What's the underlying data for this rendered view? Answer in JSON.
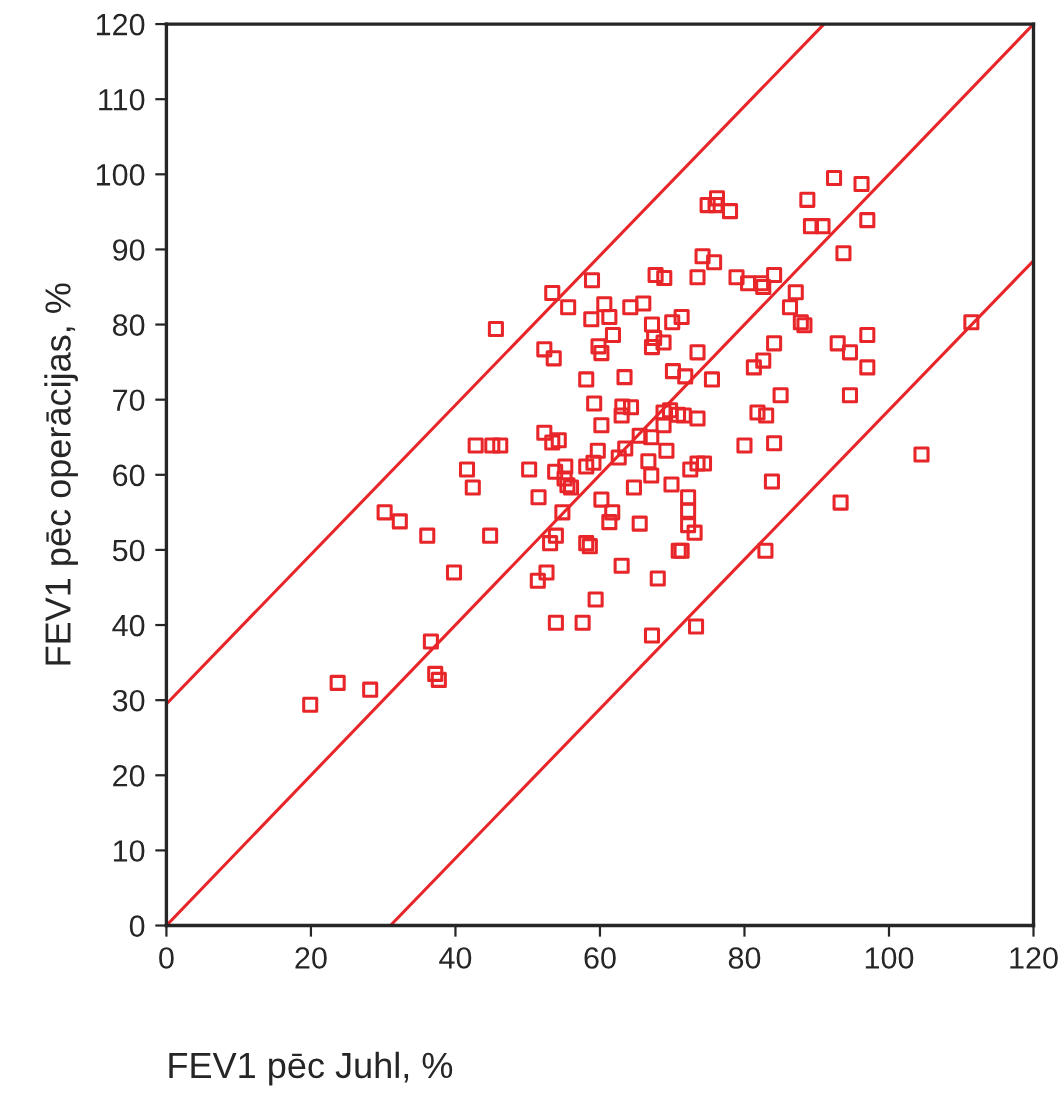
{
  "chart_data": {
    "type": "scatter",
    "xlabel": "FEV1 pēc Juhl, %",
    "ylabel": "FEV1 pēc operācijas, %",
    "xlim": [
      0,
      120
    ],
    "ylim": [
      0,
      120
    ],
    "xticks": [
      0,
      20,
      40,
      60,
      80,
      100,
      120
    ],
    "yticks": [
      0,
      10,
      20,
      30,
      40,
      50,
      60,
      70,
      80,
      90,
      100,
      110,
      120
    ],
    "grid": false,
    "series": [
      {
        "marker": "square",
        "color": "#e8262a",
        "x": [
          58.9,
          53.4,
          55.6,
          67.7,
          68.9,
          60.6,
          58.8,
          61.3,
          64.2,
          66.0,
          67.2,
          70.0,
          61.8,
          45.6,
          67.5,
          68.8,
          67.2,
          59.8,
          60.2,
          52.3,
          53.6,
          70.1,
          63.4,
          58.1,
          59.2,
          63.1,
          64.3,
          63.0,
          60.2,
          52.3,
          53.4,
          54.3,
          42.8,
          45.1,
          46.2,
          65.5,
          67.1,
          69.2,
          63.5,
          62.6,
          59.7,
          59.1,
          58.1,
          66.7,
          55.2,
          53.8,
          55.1,
          55.5,
          56.0,
          41.6,
          50.2,
          67.1,
          69.9,
          42.4,
          64.7,
          51.5,
          60.2,
          30.2,
          54.8,
          61.7,
          32.3,
          36.1,
          44.8,
          61.3,
          65.5,
          53.9,
          53.1,
          58.1,
          58.6,
          70.9,
          39.8,
          52.6,
          51.4,
          63.0,
          68.0,
          59.4,
          53.9,
          57.6,
          67.2,
          36.6,
          37.2,
          37.7,
          23.7,
          28.2,
          19.9,
          92.4,
          96.2,
          88.7,
          74.9,
          76.2,
          76.0,
          78.0,
          89.2,
          90.8,
          97.0,
          93.7,
          74.2,
          75.8,
          73.5,
          78.9,
          80.5,
          82.3,
          82.6,
          84.1,
          87.1,
          86.3,
          87.8,
          88.3,
          71.3,
          111.4,
          84.1,
          92.9,
          94.6,
          97.0,
          73.5,
          81.3,
          82.6,
          97.0,
          71.8,
          75.5,
          85.0,
          94.6,
          68.8,
          69.7,
          70.8,
          71.6,
          73.5,
          68.8,
          81.8,
          83.0,
          80.0,
          84.1,
          73.5,
          74.4,
          72.5,
          104.5,
          83.8,
          72.2,
          72.2,
          93.3,
          72.2,
          73.1,
          71.3,
          82.9,
          73.3
        ],
        "values": [
          85.9,
          84.2,
          82.3,
          86.6,
          86.2,
          82.7,
          80.7,
          81.0,
          82.3,
          82.8,
          80.0,
          80.3,
          78.6,
          79.4,
          78.2,
          77.6,
          77.0,
          77.1,
          76.2,
          76.7,
          75.5,
          73.8,
          73.0,
          72.7,
          69.5,
          69.1,
          69.0,
          67.9,
          66.6,
          65.6,
          64.3,
          64.6,
          63.9,
          63.9,
          63.9,
          65.2,
          65.0,
          63.2,
          63.5,
          62.3,
          63.2,
          61.6,
          61.1,
          61.8,
          61.1,
          60.4,
          59.5,
          58.6,
          58.3,
          60.7,
          60.7,
          59.9,
          58.7,
          58.3,
          58.3,
          57.0,
          56.7,
          55.0,
          55.0,
          55.0,
          53.8,
          51.9,
          51.9,
          53.7,
          53.5,
          51.9,
          50.9,
          50.9,
          50.5,
          49.9,
          47.0,
          47.0,
          45.9,
          47.9,
          46.2,
          43.4,
          40.3,
          40.3,
          38.6,
          37.8,
          33.5,
          32.7,
          32.3,
          31.4,
          29.4,
          99.5,
          98.7,
          96.6,
          95.9,
          96.8,
          95.9,
          95.1,
          93.1,
          93.1,
          93.9,
          89.5,
          89.1,
          88.3,
          86.3,
          86.3,
          85.5,
          85.5,
          85.0,
          86.6,
          84.3,
          82.3,
          80.3,
          79.9,
          81.0,
          80.3,
          77.5,
          77.5,
          76.3,
          78.6,
          76.3,
          74.3,
          75.2,
          74.3,
          73.1,
          72.7,
          70.6,
          70.6,
          68.3,
          68.6,
          68.0,
          67.9,
          67.5,
          66.6,
          68.3,
          67.9,
          63.9,
          64.2,
          61.5,
          61.5,
          60.7,
          62.7,
          59.1,
          57.0,
          55.2,
          56.3,
          53.3,
          52.3,
          49.9,
          49.9,
          39.8
        ]
      },
      {
        "type": "line",
        "marker": "none",
        "color": "#e8262a",
        "x": [
          0,
          91
        ],
        "values": [
          29.5,
          120
        ]
      },
      {
        "type": "line",
        "marker": "none",
        "color": "#e8262a",
        "x": [
          0,
          120
        ],
        "values": [
          0,
          120
        ]
      },
      {
        "type": "line",
        "marker": "none",
        "color": "#e8262a",
        "x": [
          31,
          120
        ],
        "values": [
          0,
          88.5
        ]
      }
    ]
  }
}
